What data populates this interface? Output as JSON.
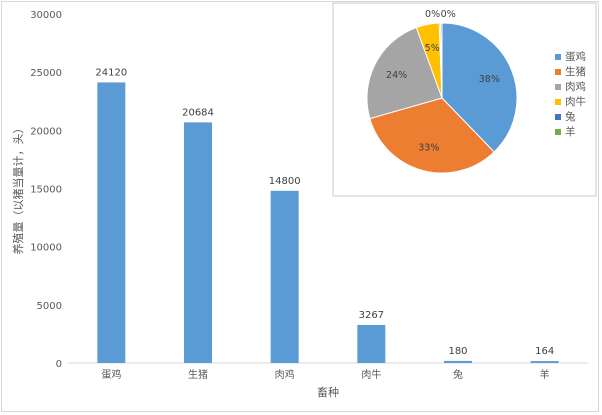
{
  "chart_data": [
    {
      "type": "bar",
      "categories": [
        "蛋鸡",
        "生猪",
        "肉鸡",
        "肉牛",
        "兔",
        "羊"
      ],
      "values": [
        24120,
        20684,
        14800,
        3267,
        180,
        164
      ],
      "data_labels": [
        "24120",
        "20684",
        "14800",
        "3267",
        "180",
        "164"
      ],
      "xlabel": "畜种",
      "ylabel": "养殖量（以猪当量计，头）",
      "ylim": [
        0,
        30000
      ],
      "yticks": [
        "0",
        "5000",
        "10000",
        "15000",
        "20000",
        "25000",
        "30000"
      ],
      "grid": false,
      "color": "#5B9BD5"
    },
    {
      "type": "pie",
      "labels": [
        "蛋鸡",
        "生猪",
        "肉鸡",
        "肉牛",
        "兔",
        "羊"
      ],
      "percent_labels": [
        "38%",
        "33%",
        "24%",
        "5%",
        "0%",
        "0%"
      ],
      "colors": [
        "#5B9BD5",
        "#ED7D31",
        "#A5A5A5",
        "#FFC000",
        "#4472C4",
        "#70AD47"
      ],
      "legend_position": "right"
    }
  ]
}
